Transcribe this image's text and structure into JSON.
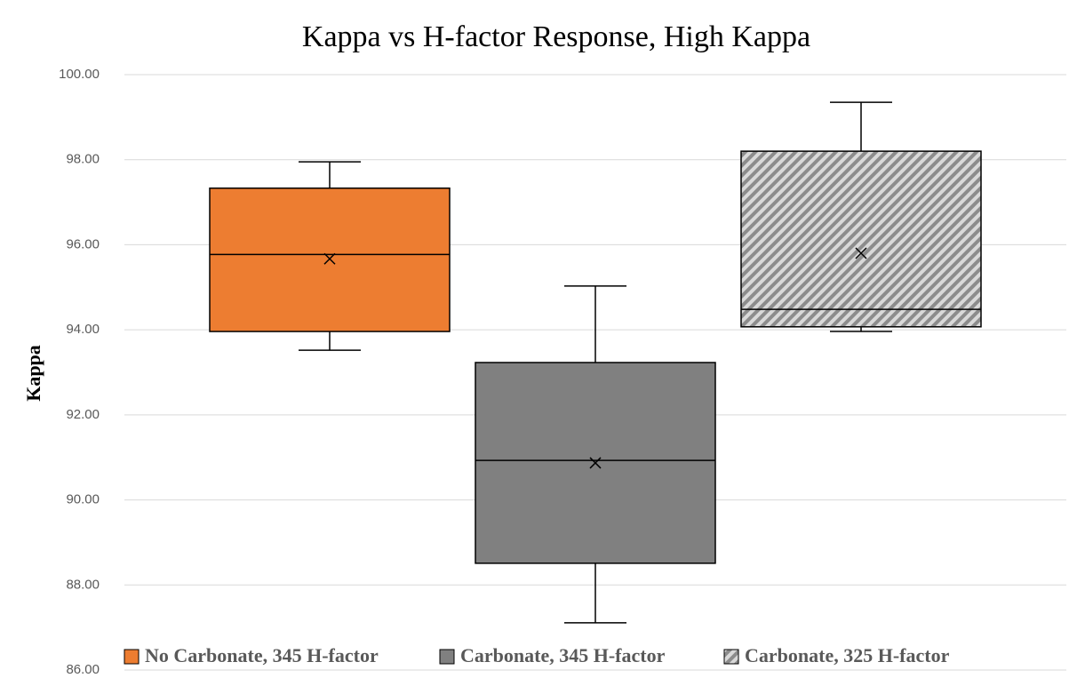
{
  "chart_data": {
    "type": "box",
    "title": "Kappa vs H-factor Response, High Kappa",
    "ylabel": "Kappa",
    "ylim": [
      86,
      100
    ],
    "yticks": [
      {
        "value": 86,
        "label": "86.00"
      },
      {
        "value": 88,
        "label": "88.00"
      },
      {
        "value": 90,
        "label": "90.00"
      },
      {
        "value": 92,
        "label": "92.00"
      },
      {
        "value": 94,
        "label": "94.00"
      },
      {
        "value": 96,
        "label": "96.00"
      },
      {
        "value": 98,
        "label": "98.00"
      },
      {
        "value": 100,
        "label": "100.00"
      }
    ],
    "grid": true,
    "legend": "bottom",
    "series": [
      {
        "name": "No Carbonate, 345 H-factor",
        "color": "#ed7d31",
        "min": 93.52,
        "q1": 93.96,
        "median": 95.77,
        "q3": 97.33,
        "max": 97.95,
        "mean": 95.67
      },
      {
        "name": "Carbonate, 345 H-factor",
        "color": "#808080",
        "min": 87.11,
        "q1": 88.51,
        "median": 90.93,
        "q3": 93.23,
        "max": 95.03,
        "mean": 90.87
      },
      {
        "name": "Carbonate, 325 H-factor",
        "color": "#a6a6a6",
        "hatch": true,
        "min": 93.96,
        "q1": 94.07,
        "median": 94.48,
        "q3": 98.2,
        "max": 99.35,
        "mean": 95.8
      }
    ]
  }
}
